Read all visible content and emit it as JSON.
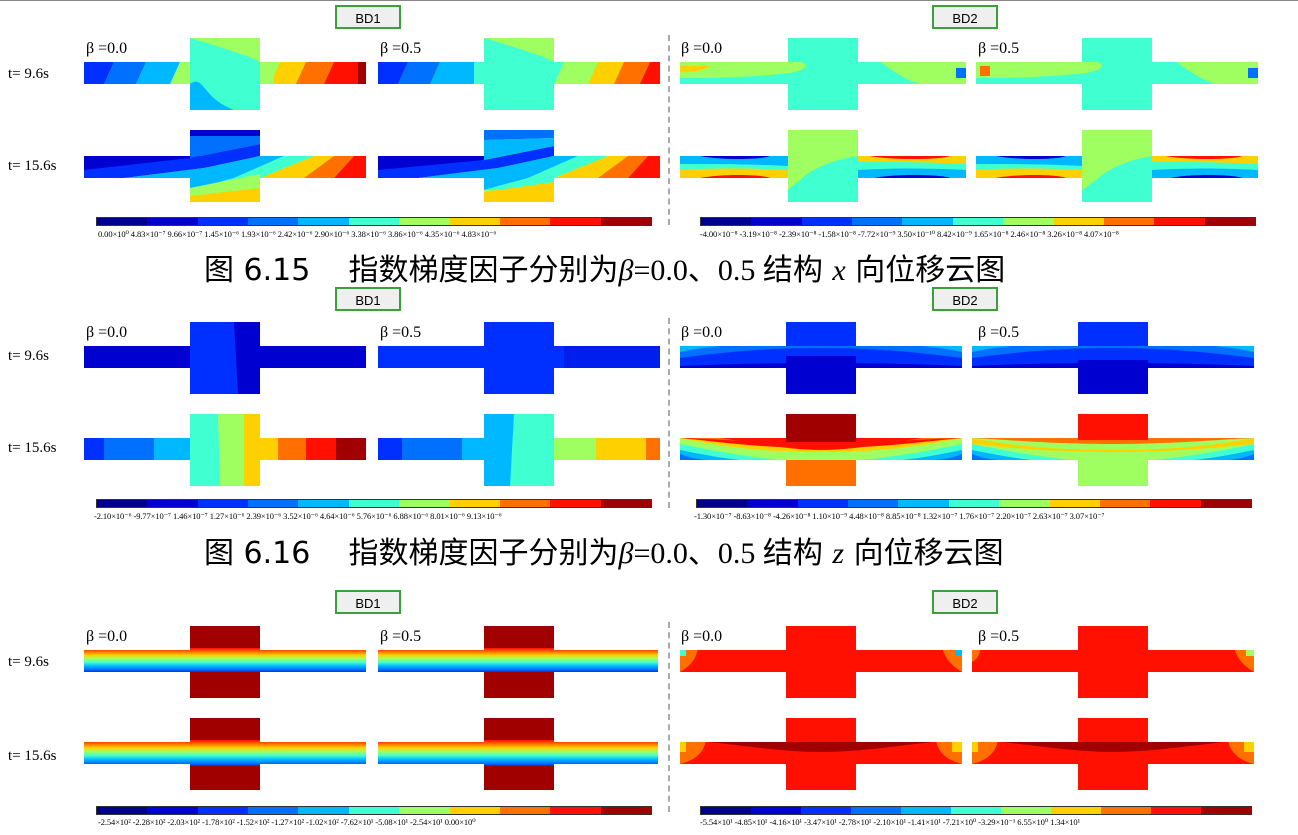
{
  "panels": [
    {
      "top": 0,
      "tags": [
        "BD1",
        "BD2"
      ],
      "time_labels": [
        "t= 9.6s",
        "t= 15.6s"
      ],
      "beta_labels": [
        "β =0.0",
        "β =0.5"
      ],
      "legend_left": "0.00×10⁰ 4.83×10⁻⁷ 9.66×10⁻⁷ 1.45×10⁻⁶ 1.93×10⁻⁶ 2.42×10⁻⁶ 2.90×10⁻⁶ 3.38×10⁻⁶ 3.86×10⁻⁶ 4.35×10⁻⁶ 4.83×10⁻⁶",
      "legend_right": "-4.00×10⁻⁸ -3.19×10⁻⁸ -2.39×10⁻⁸ -1.58×10⁻⁸ -7.72×10⁻⁹ 3.50×10⁻¹⁰ 8.42×10⁻⁹ 1.65×10⁻⁸ 2.46×10⁻⁸ 3.26×10⁻⁸ 4.07×10⁻⁸",
      "caption_fig": "图 6.15",
      "caption_text": "指数梯度因子分别为",
      "caption_beta": "β",
      "caption_mid": "=0.0、0.5 结构",
      "caption_axis": "x",
      "caption_end": "向位移云图"
    },
    {
      "top": 285,
      "tags": [
        "BD1",
        "BD2"
      ],
      "time_labels": [
        "t= 9.6s",
        "t= 15.6s"
      ],
      "beta_labels": [
        "β =0.0",
        "β =0.5"
      ],
      "legend_left": "-2.10×10⁻⁶ -9.77×10⁻⁷ 1.46×10⁻⁷ 1.27×10⁻⁶ 2.39×10⁻⁶ 3.52×10⁻⁶ 4.64×10⁻⁶ 5.76×10⁻⁶ 6.88×10⁻⁶ 8.01×10⁻⁶ 9.13×10⁻⁶",
      "legend_right": "-1.30×10⁻⁷ -8.63×10⁻⁸ -4.26×10⁻⁸ 1.10×10⁻⁹ 4.48×10⁻⁸ 8.85×10⁻⁸ 1.32×10⁻⁷ 1.76×10⁻⁷ 2.20×10⁻⁷ 2.63×10⁻⁷ 3.07×10⁻⁷",
      "caption_fig": "图 6.16",
      "caption_text": "指数梯度因子分别为",
      "caption_beta": "β",
      "caption_mid": "=0.0、0.5 结构",
      "caption_axis": "z",
      "caption_end": "向位移云图"
    },
    {
      "top": 588,
      "tags": [
        "BD1",
        "BD2"
      ],
      "time_labels": [
        "t= 9.6s",
        "t= 15.6s"
      ],
      "beta_labels": [
        "β =0.0",
        "β =0.5"
      ],
      "legend_left": "-2.54×10² -2.28×10² -2.03×10² -1.78×10² -1.52×10² -1.27×10² -1.02×10² -7.62×10¹ -5.08×10¹ -2.54×10¹ 0.00×10⁰",
      "legend_right": "-5.54×10¹ -4.85×10¹ -4.16×10¹ -3.47×10¹ -2.78×10¹ -2.10×10¹ -1.41×10¹ -7.21×10⁰ -3.29×10⁻¹ 6.55×10⁰ 1.34×10¹",
      "caption_fig": "",
      "caption_text": "",
      "caption_beta": "",
      "caption_mid": "",
      "caption_axis": "",
      "caption_end": ""
    }
  ],
  "colors": {
    "scale": [
      "#00008f",
      "#0000d0",
      "#0030ff",
      "#0070ff",
      "#00b8ff",
      "#40ffd0",
      "#a0ff60",
      "#ffd000",
      "#ff7000",
      "#ff1000",
      "#a00000"
    ]
  }
}
